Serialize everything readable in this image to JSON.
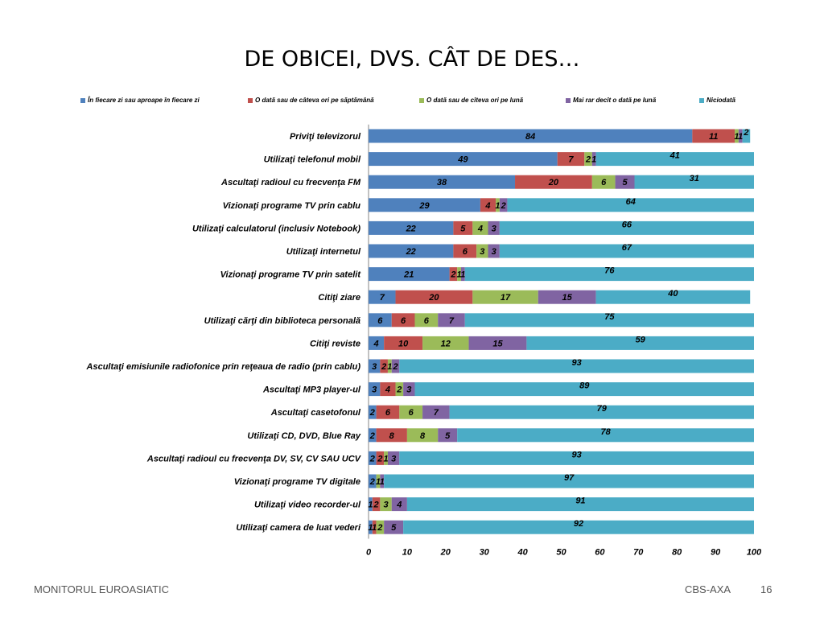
{
  "title": "DE OBICEI, DVS. CÂT DE DES…",
  "footer": {
    "left": "MONITORUL  EUROASIATIC",
    "right": "CBS-AXA",
    "page": "16"
  },
  "colors": {
    "s1": "#4F81BD",
    "s2": "#C0504D",
    "s3": "#9BBB59",
    "s4": "#8064A2",
    "s5": "#4BACC6"
  },
  "chart_data": {
    "type": "bar",
    "orientation": "horizontal",
    "stacked": true,
    "xlim": [
      0,
      100
    ],
    "xticks": [
      0,
      10,
      20,
      30,
      40,
      50,
      60,
      70,
      80,
      90,
      100
    ],
    "legend_position": "top",
    "grid": false,
    "categories": [
      "Priviţi televizorul",
      "Utilizaţi telefonul mobil",
      "Ascultaţi radioul cu frecvenţa FM",
      "Vizionaţi programe TV prin cablu",
      "Utilizaţi calculatorul (inclusiv Notebook)",
      "Utilizaţi internetul",
      "Vizionaţi programe TV prin satelit",
      "Citiţi ziare",
      "Utilizaţi cărţi din biblioteca personală",
      "Citiţi reviste",
      "Ascultaţi emisiunile radiofonice prin reţeaua de radio (prin cablu)",
      "Ascultaţi MP3 player-ul",
      "Ascultaţi casetofonul",
      "Utilizaţi CD, DVD, Blue Ray",
      "Ascultaţi radioul cu frecvenţa DV, SV, CV SAU UCV",
      "Vizionaţi programe TV digitale",
      "Utilizaţi video recorder-ul",
      "Utilizaţi camera de luat vederi"
    ],
    "series": [
      {
        "name": "În fiecare zi sau aproape în fiecare zi",
        "values": [
          84,
          49,
          38,
          29,
          22,
          22,
          21,
          7,
          6,
          4,
          3,
          3,
          2,
          2,
          2,
          2,
          1,
          1
        ]
      },
      {
        "name": "O dată sau de câteva ori pe săptămână",
        "values": [
          11,
          7,
          20,
          4,
          5,
          6,
          2,
          20,
          6,
          10,
          2,
          4,
          6,
          8,
          2,
          0,
          2,
          1
        ]
      },
      {
        "name": "O dată sau de cîteva ori pe lună",
        "values": [
          1,
          2,
          6,
          1,
          4,
          3,
          1,
          17,
          6,
          12,
          1,
          2,
          6,
          8,
          1,
          1,
          3,
          2
        ]
      },
      {
        "name": "Mai rar decît o dată pe lună",
        "values": [
          1,
          1,
          5,
          2,
          3,
          3,
          1,
          15,
          7,
          15,
          2,
          3,
          7,
          5,
          3,
          1,
          4,
          5
        ]
      },
      {
        "name": "Niciodată",
        "values": [
          2,
          41,
          31,
          64,
          66,
          67,
          76,
          40,
          75,
          59,
          93,
          89,
          79,
          78,
          93,
          97,
          91,
          92
        ]
      }
    ]
  }
}
